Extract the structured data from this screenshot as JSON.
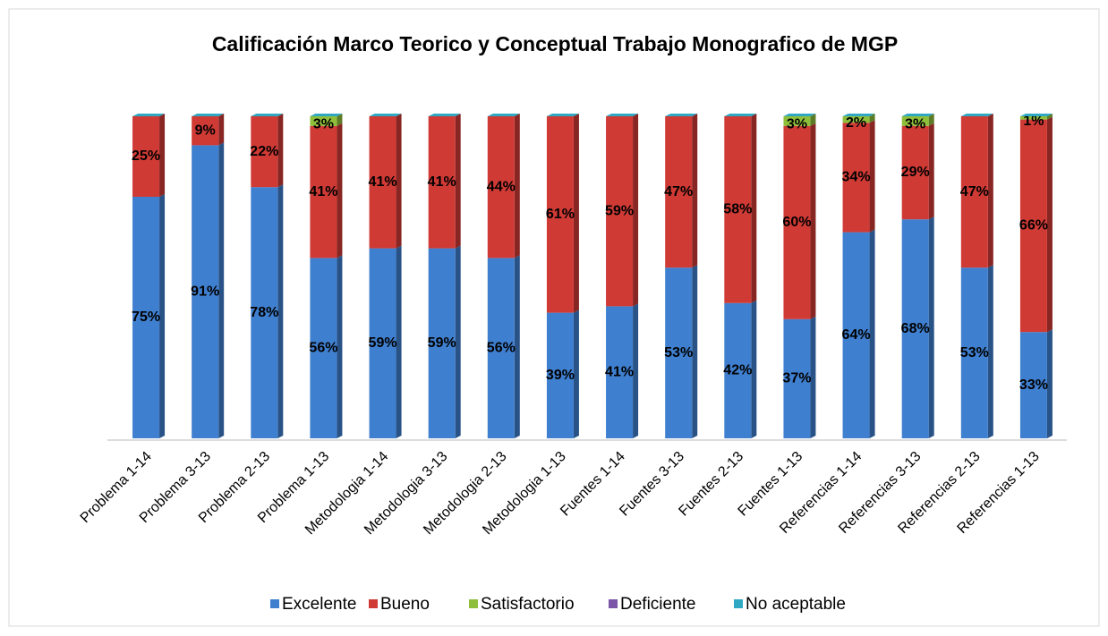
{
  "chart_data": {
    "type": "bar",
    "stacked": true,
    "title": "Calificación Marco Teorico y Conceptual Trabajo Monografico de MGP",
    "categories": [
      "Problema 1-14",
      "Problema 3-13",
      "Problema 2-13",
      "Problema 1-13",
      "Metodologia 1-14",
      "Metodologia 3-13",
      "Metodologia 2-13",
      "Metodologia 1-13",
      "Fuentes 1-14",
      "Fuentes 3-13",
      "Fuentes 2-13",
      "Fuentes 1-13",
      "Referencias 1-14",
      "Referencias 3-13",
      "Referencias 2-13",
      "Referencias 1-13"
    ],
    "ylim": [
      0,
      100
    ],
    "legend": "bottom",
    "series": [
      {
        "name": "Excelente",
        "color": "#3f7fcf",
        "values": [
          75,
          91,
          78,
          56,
          59,
          59,
          56,
          39,
          41,
          53,
          42,
          37,
          64,
          68,
          53,
          33
        ],
        "value_labels": [
          "75%",
          "91%",
          "78%",
          "56%",
          "59%",
          "59%",
          "56%",
          "39%",
          "41%",
          "53%",
          "42%",
          "37%",
          "64%",
          "68%",
          "53%",
          "33%"
        ]
      },
      {
        "name": "Bueno",
        "color": "#d03a35",
        "values": [
          25,
          9,
          22,
          41,
          41,
          41,
          44,
          61,
          59,
          47,
          58,
          60,
          34,
          29,
          47,
          66
        ],
        "value_labels": [
          "25%",
          "9%",
          "22%",
          "41%",
          "41%",
          "41%",
          "44%",
          "61%",
          "59%",
          "47%",
          "58%",
          "60%",
          "34%",
          "29%",
          "47%",
          "66%"
        ]
      },
      {
        "name": "Satisfactorio",
        "color": "#8fbf3a",
        "values": [
          0,
          0,
          0,
          3,
          0,
          0,
          0,
          0,
          0,
          0,
          0,
          3,
          2,
          3,
          0,
          1
        ],
        "value_labels": [
          null,
          null,
          null,
          "3%",
          null,
          null,
          null,
          null,
          null,
          null,
          null,
          "3%",
          "2%",
          "3%",
          null,
          "1%"
        ]
      },
      {
        "name": "Deficiente",
        "color": "#7a55a8",
        "values": [
          0,
          0,
          0,
          0,
          0,
          0,
          0,
          0,
          0,
          0,
          0,
          0,
          0,
          0,
          0,
          0
        ]
      },
      {
        "name": "No aceptable",
        "color": "#2fa8c4",
        "values": [
          0,
          0,
          0,
          0,
          0,
          0,
          0,
          0,
          0,
          0,
          0,
          0,
          0,
          0,
          0,
          0
        ]
      }
    ]
  }
}
